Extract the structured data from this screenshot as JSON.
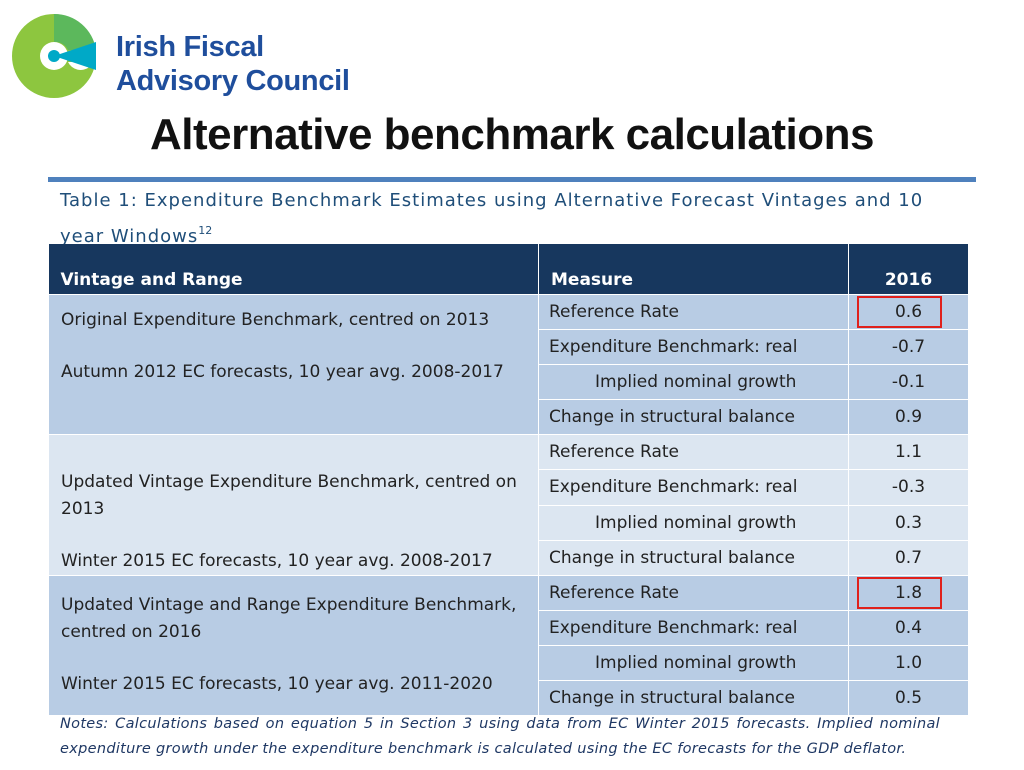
{
  "logo": {
    "line1": "Irish Fiscal",
    "line2": "Advisory Council",
    "colors": {
      "outer": "#8dc63f",
      "inner": "#00a9c7",
      "text": "#1f4e9c"
    }
  },
  "title": "Alternative benchmark calculations",
  "table": {
    "caption": "Table 1: Expenditure Benchmark Estimates using Alternative Forecast Vintages and 10 year Windows",
    "caption_footnote": "12",
    "headers": {
      "vintage": "Vintage and Range",
      "measure": "Measure",
      "year": "2016"
    },
    "blocks": [
      {
        "vintage_lines": [
          "Original Expenditure Benchmark, centred on 2013",
          "Autumn 2012 EC forecasts, 10 year avg. 2008-2017"
        ],
        "rows": [
          {
            "measure": "Reference Rate",
            "value": "0.6"
          },
          {
            "measure": "Expenditure Benchmark: real",
            "value": "-0.7"
          },
          {
            "measure": "Implied nominal  growth",
            "value": "-0.1"
          },
          {
            "measure": "Change in structural balance",
            "value": "0.9"
          }
        ]
      },
      {
        "vintage_lines": [
          "Updated Vintage Expenditure Benchmark, centred on 2013",
          "Winter 2015 EC forecasts, 10 year avg. 2008-2017"
        ],
        "rows": [
          {
            "measure": "Reference Rate",
            "value": "1.1"
          },
          {
            "measure": "Expenditure Benchmark: real",
            "value": "-0.3"
          },
          {
            "measure": "Implied nominal  growth",
            "value": "0.3"
          },
          {
            "measure": "Change in structural balance",
            "value": "0.7"
          }
        ]
      },
      {
        "vintage_lines": [
          "Updated Vintage and Range Expenditure Benchmark, centred on 2016",
          "Winter 2015 EC forecasts, 10 year avg. 2011-2020"
        ],
        "rows": [
          {
            "measure": "Reference Rate",
            "value": "1.8"
          },
          {
            "measure": "Expenditure Benchmark: real",
            "value": "0.4"
          },
          {
            "measure": "Implied nominal  growth",
            "value": "1.0"
          },
          {
            "measure": "Change in structural balance",
            "value": "0.5"
          }
        ]
      }
    ],
    "colors": {
      "header": "#17375e",
      "block_dark": "#b8cce4",
      "block_light": "#dce6f1",
      "highlight": "#e0201b"
    }
  },
  "notes": "Notes: Calculations based on equation 5 in Section 3 using data from EC Winter 2015 forecasts. Implied nominal expenditure growth under the expenditure benchmark is calculated using the EC forecasts for the GDP deflator."
}
